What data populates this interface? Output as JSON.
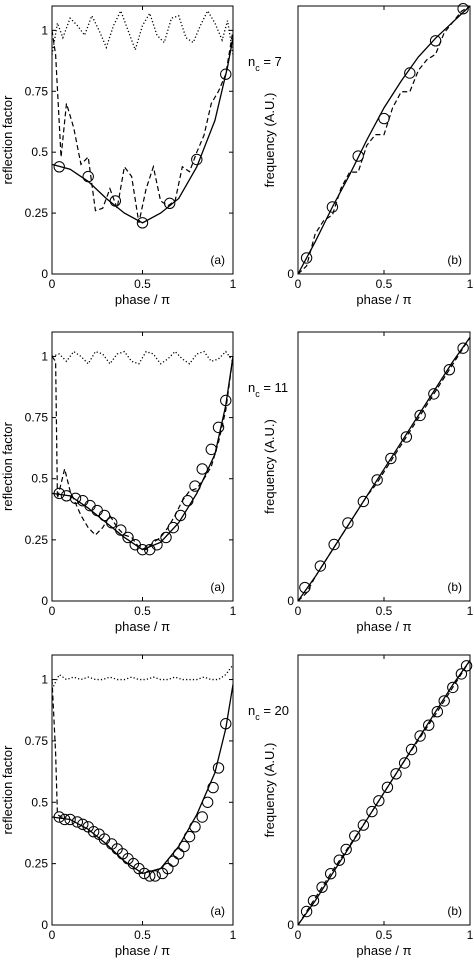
{
  "chart_data": [
    {
      "panel": "(a)",
      "type": "line",
      "xlabel": "phase / π",
      "ylabel": "reflection factor",
      "xlim": [
        0,
        1
      ],
      "ylim": [
        0,
        1.1
      ],
      "xticks": [
        "0",
        "0.5",
        "1"
      ],
      "yticks": [
        "0",
        "0.25",
        "0.5",
        "0.75",
        "1"
      ],
      "label": "(a)",
      "series": [
        {
          "style": "solid",
          "x": [
            0.0,
            0.1,
            0.2,
            0.3,
            0.4,
            0.5,
            0.6,
            0.7,
            0.8,
            0.9,
            0.97,
            1.0
          ],
          "values": [
            0.45,
            0.43,
            0.38,
            0.31,
            0.25,
            0.21,
            0.25,
            0.31,
            0.44,
            0.63,
            0.85,
            0.97
          ]
        },
        {
          "style": "circle-markers",
          "x": [
            0.04,
            0.2,
            0.35,
            0.5,
            0.65,
            0.8,
            0.96
          ],
          "values": [
            0.44,
            0.4,
            0.3,
            0.21,
            0.29,
            0.47,
            0.82
          ]
        },
        {
          "style": "dashed",
          "x": [
            0.0,
            0.02,
            0.05,
            0.08,
            0.12,
            0.16,
            0.2,
            0.24,
            0.28,
            0.32,
            0.36,
            0.4,
            0.44,
            0.48,
            0.52,
            0.56,
            0.6,
            0.64,
            0.68,
            0.72,
            0.76,
            0.8,
            0.84,
            0.88,
            0.92,
            0.96,
            1.0
          ],
          "values": [
            1.0,
            0.9,
            0.48,
            0.7,
            0.6,
            0.45,
            0.48,
            0.26,
            0.27,
            0.35,
            0.27,
            0.44,
            0.4,
            0.21,
            0.35,
            0.44,
            0.3,
            0.28,
            0.3,
            0.44,
            0.42,
            0.5,
            0.57,
            0.7,
            0.75,
            0.82,
            1.0
          ]
        },
        {
          "style": "dotted",
          "x": [
            0.0,
            0.03,
            0.06,
            0.1,
            0.14,
            0.18,
            0.22,
            0.26,
            0.3,
            0.34,
            0.38,
            0.42,
            0.46,
            0.5,
            0.54,
            0.58,
            0.62,
            0.66,
            0.7,
            0.74,
            0.78,
            0.82,
            0.86,
            0.9,
            0.94,
            0.97,
            1.0
          ],
          "values": [
            0.9,
            1.03,
            0.97,
            1.05,
            1.02,
            0.98,
            1.06,
            1.0,
            0.93,
            1.02,
            1.08,
            1.0,
            0.92,
            1.02,
            1.07,
            0.98,
            0.95,
            1.05,
            1.06,
            0.97,
            0.95,
            1.02,
            1.08,
            1.03,
            0.96,
            1.04,
            0.9
          ]
        }
      ]
    },
    {
      "panel": "(b)",
      "type": "line",
      "xlabel": "phase / π",
      "ylabel": "frequency (A.U.)",
      "annotation": "n_c = 7",
      "xlim": [
        0,
        1
      ],
      "ylim": [
        0,
        1
      ],
      "xticks": [
        "0",
        "0.5",
        "1"
      ],
      "yticks": [
        "0"
      ],
      "label": "(b)",
      "series": [
        {
          "style": "solid",
          "x": [
            0.0,
            0.1,
            0.2,
            0.3,
            0.4,
            0.5,
            0.6,
            0.7,
            0.8,
            0.9,
            1.0
          ],
          "values": [
            0.0,
            0.12,
            0.25,
            0.37,
            0.5,
            0.62,
            0.72,
            0.81,
            0.88,
            0.94,
            1.0
          ]
        },
        {
          "style": "circle-markers",
          "x": [
            0.05,
            0.2,
            0.35,
            0.5,
            0.65,
            0.8,
            0.96
          ],
          "values": [
            0.06,
            0.25,
            0.44,
            0.58,
            0.75,
            0.87,
            0.99
          ]
        },
        {
          "style": "dashed",
          "x": [
            0.0,
            0.05,
            0.1,
            0.15,
            0.2,
            0.25,
            0.3,
            0.35,
            0.4,
            0.45,
            0.5,
            0.55,
            0.6,
            0.65,
            0.7,
            0.75,
            0.8,
            0.85,
            0.9,
            0.95,
            1.0
          ],
          "values": [
            0.0,
            0.03,
            0.15,
            0.2,
            0.22,
            0.32,
            0.38,
            0.38,
            0.48,
            0.52,
            0.52,
            0.62,
            0.68,
            0.68,
            0.76,
            0.8,
            0.82,
            0.9,
            0.94,
            0.98,
            1.0
          ]
        }
      ]
    },
    {
      "panel": "(a)",
      "type": "line",
      "xlabel": "phase / π",
      "ylabel": "reflection factor",
      "xlim": [
        0,
        1
      ],
      "ylim": [
        0,
        1.1
      ],
      "xticks": [
        "0",
        "0.5",
        "1"
      ],
      "yticks": [
        "0",
        "0.25",
        "0.5",
        "0.75",
        "1"
      ],
      "label": "(a)",
      "series": [
        {
          "style": "solid",
          "x": [
            0.0,
            0.1,
            0.2,
            0.3,
            0.4,
            0.5,
            0.6,
            0.7,
            0.8,
            0.9,
            0.96,
            1.0
          ],
          "values": [
            0.44,
            0.43,
            0.38,
            0.32,
            0.26,
            0.21,
            0.24,
            0.32,
            0.44,
            0.6,
            0.8,
            1.0
          ]
        },
        {
          "style": "circle-markers",
          "x": [
            0.04,
            0.08,
            0.13,
            0.17,
            0.21,
            0.25,
            0.29,
            0.33,
            0.38,
            0.42,
            0.46,
            0.5,
            0.54,
            0.58,
            0.63,
            0.67,
            0.71,
            0.75,
            0.79,
            0.83,
            0.88,
            0.92,
            0.96
          ],
          "values": [
            0.44,
            0.43,
            0.42,
            0.41,
            0.39,
            0.37,
            0.35,
            0.32,
            0.29,
            0.26,
            0.23,
            0.21,
            0.21,
            0.23,
            0.26,
            0.3,
            0.35,
            0.41,
            0.47,
            0.54,
            0.62,
            0.71,
            0.82
          ]
        },
        {
          "style": "dashed",
          "x": [
            0.0,
            0.02,
            0.03,
            0.05,
            0.07,
            0.1,
            0.13,
            0.16,
            0.2,
            0.24,
            0.28,
            0.32,
            0.36,
            0.4,
            0.44,
            0.48,
            0.52,
            0.56,
            0.6,
            0.64,
            0.68,
            0.72,
            0.76,
            0.8,
            0.84,
            0.88,
            0.92,
            0.96,
            1.0
          ],
          "values": [
            1.0,
            0.98,
            0.42,
            0.48,
            0.54,
            0.45,
            0.4,
            0.35,
            0.3,
            0.27,
            0.3,
            0.35,
            0.3,
            0.27,
            0.26,
            0.22,
            0.21,
            0.24,
            0.26,
            0.3,
            0.35,
            0.41,
            0.45,
            0.46,
            0.5,
            0.55,
            0.65,
            0.78,
            1.0
          ]
        },
        {
          "style": "dotted",
          "x": [
            0.0,
            0.04,
            0.08,
            0.12,
            0.16,
            0.2,
            0.24,
            0.28,
            0.32,
            0.36,
            0.4,
            0.44,
            0.48,
            0.52,
            0.56,
            0.6,
            0.64,
            0.68,
            0.72,
            0.76,
            0.8,
            0.84,
            0.88,
            0.92,
            0.96,
            1.0
          ],
          "values": [
            1.0,
            1.01,
            0.98,
            1.02,
            1.0,
            0.97,
            1.02,
            1.01,
            0.97,
            1.01,
            1.02,
            0.98,
            0.97,
            1.02,
            1.01,
            0.97,
            0.99,
            1.02,
            0.99,
            0.97,
            1.01,
            1.02,
            0.98,
            0.99,
            1.02,
            0.98
          ]
        }
      ]
    },
    {
      "panel": "(b)",
      "type": "line",
      "xlabel": "phase / π",
      "ylabel": "frequency (A.U.)",
      "annotation": "n_c = 11",
      "xlim": [
        0,
        1
      ],
      "ylim": [
        0,
        1
      ],
      "xticks": [
        "0",
        "0.5",
        "1"
      ],
      "yticks": [
        "0"
      ],
      "label": "(b)",
      "series": [
        {
          "style": "solid",
          "x": [
            0.0,
            0.1,
            0.2,
            0.3,
            0.4,
            0.5,
            0.6,
            0.7,
            0.8,
            0.9,
            1.0
          ],
          "values": [
            0.0,
            0.09,
            0.19,
            0.29,
            0.39,
            0.49,
            0.59,
            0.69,
            0.79,
            0.89,
            0.98
          ]
        },
        {
          "style": "circle-markers",
          "x": [
            0.04,
            0.13,
            0.21,
            0.29,
            0.38,
            0.46,
            0.54,
            0.63,
            0.71,
            0.79,
            0.88,
            0.96
          ],
          "values": [
            0.05,
            0.13,
            0.21,
            0.29,
            0.37,
            0.45,
            0.53,
            0.61,
            0.69,
            0.77,
            0.86,
            0.94
          ]
        },
        {
          "style": "dashed",
          "x": [
            0.0,
            0.05,
            0.1,
            0.15,
            0.2,
            0.25,
            0.3,
            0.35,
            0.4,
            0.45,
            0.5,
            0.55,
            0.6,
            0.65,
            0.7,
            0.75,
            0.8,
            0.85,
            0.9,
            0.95,
            1.0
          ],
          "values": [
            0.0,
            0.03,
            0.09,
            0.14,
            0.19,
            0.24,
            0.29,
            0.34,
            0.39,
            0.43,
            0.48,
            0.53,
            0.58,
            0.63,
            0.68,
            0.73,
            0.78,
            0.83,
            0.88,
            0.93,
            0.98
          ]
        }
      ]
    },
    {
      "panel": "(a)",
      "type": "line",
      "xlabel": "phase / π",
      "ylabel": "reflection factor",
      "xlim": [
        0,
        1
      ],
      "ylim": [
        0,
        1.1
      ],
      "xticks": [
        "0",
        "0.5",
        "1"
      ],
      "yticks": [
        "0",
        "0.25",
        "0.5",
        "0.75",
        "1"
      ],
      "label": "(a)",
      "series": [
        {
          "style": "solid",
          "x": [
            0.0,
            0.1,
            0.2,
            0.3,
            0.4,
            0.5,
            0.6,
            0.7,
            0.8,
            0.9,
            0.96,
            1.0
          ],
          "values": [
            0.44,
            0.43,
            0.39,
            0.33,
            0.26,
            0.21,
            0.23,
            0.32,
            0.45,
            0.62,
            0.8,
            0.98
          ]
        },
        {
          "style": "circle-markers",
          "x": [
            0.04,
            0.07,
            0.1,
            0.14,
            0.17,
            0.2,
            0.23,
            0.26,
            0.29,
            0.33,
            0.36,
            0.39,
            0.42,
            0.45,
            0.48,
            0.51,
            0.54,
            0.57,
            0.61,
            0.64,
            0.67,
            0.7,
            0.73,
            0.76,
            0.79,
            0.83,
            0.86,
            0.89,
            0.92,
            0.96
          ],
          "values": [
            0.44,
            0.43,
            0.43,
            0.42,
            0.41,
            0.4,
            0.38,
            0.37,
            0.35,
            0.33,
            0.31,
            0.29,
            0.27,
            0.25,
            0.23,
            0.21,
            0.2,
            0.2,
            0.21,
            0.23,
            0.26,
            0.29,
            0.32,
            0.36,
            0.4,
            0.44,
            0.5,
            0.56,
            0.64,
            0.82
          ]
        },
        {
          "style": "dashed",
          "x": [
            0.0,
            0.01,
            0.02,
            0.03,
            0.05,
            0.08
          ],
          "values": [
            1.0,
            0.85,
            0.7,
            0.45,
            0.44,
            0.44
          ]
        },
        {
          "style": "dotted",
          "x": [
            0.0,
            0.04,
            0.08,
            0.12,
            0.16,
            0.2,
            0.24,
            0.28,
            0.32,
            0.36,
            0.4,
            0.44,
            0.48,
            0.52,
            0.56,
            0.6,
            0.64,
            0.68,
            0.72,
            0.76,
            0.8,
            0.84,
            0.88,
            0.92,
            0.96,
            1.0
          ],
          "values": [
            0.96,
            1.02,
            1.0,
            1.01,
            1.0,
            1.01,
            1.0,
            1.0,
            1.01,
            1.0,
            1.0,
            1.01,
            1.0,
            1.0,
            1.01,
            1.0,
            1.0,
            1.01,
            1.0,
            1.0,
            1.0,
            1.01,
            1.0,
            1.0,
            1.02,
            1.06
          ]
        }
      ]
    },
    {
      "panel": "(b)",
      "type": "line",
      "xlabel": "phase / π",
      "ylabel": "frequency (A.U.)",
      "annotation": "n_c = 20",
      "xlim": [
        0,
        1
      ],
      "ylim": [
        0,
        1
      ],
      "xticks": [
        "0",
        "0.5",
        "1"
      ],
      "yticks": [
        "0"
      ],
      "label": "(b)",
      "series": [
        {
          "style": "solid",
          "x": [
            0.0,
            0.1,
            0.2,
            0.3,
            0.4,
            0.5,
            0.6,
            0.7,
            0.8,
            0.9,
            1.0
          ],
          "values": [
            0.0,
            0.09,
            0.19,
            0.29,
            0.39,
            0.49,
            0.59,
            0.69,
            0.79,
            0.89,
            0.98
          ]
        },
        {
          "style": "circle-markers",
          "x": [
            0.05,
            0.09,
            0.14,
            0.19,
            0.24,
            0.28,
            0.33,
            0.38,
            0.43,
            0.47,
            0.52,
            0.57,
            0.62,
            0.66,
            0.71,
            0.76,
            0.81,
            0.85,
            0.9,
            0.95,
            0.98
          ],
          "values": [
            0.05,
            0.09,
            0.14,
            0.19,
            0.24,
            0.28,
            0.33,
            0.37,
            0.42,
            0.46,
            0.51,
            0.56,
            0.6,
            0.65,
            0.7,
            0.74,
            0.79,
            0.83,
            0.88,
            0.93,
            0.96
          ]
        },
        {
          "style": "dashed",
          "x": [
            0.0,
            0.2,
            0.4,
            0.6,
            0.8,
            1.0
          ],
          "values": [
            0.0,
            0.2,
            0.39,
            0.59,
            0.78,
            0.98
          ]
        }
      ]
    }
  ],
  "side_labels": {
    "nc7": "n_c = 7",
    "nc11": "n_c = 11",
    "nc20": "n_c = 20"
  }
}
